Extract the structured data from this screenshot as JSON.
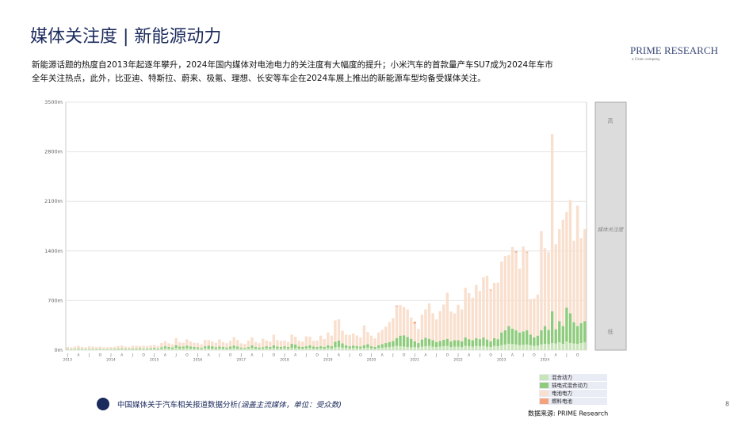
{
  "header": {
    "title": "媒体关注度 | 新能源动力",
    "subtitle": [
      "新能源话题的热度自2013年起逐年攀升，2024年国内媒体对电池电力的关注度有大幅度的提升；小米汽车的首款量产车SU7成为2024年车市",
      "全年关注热点，此外，比亚迪、特斯拉、蔚来、极氪、理想、长安等车企在2024车展上推出的新能源车型均备受媒体关注。"
    ],
    "logo": "PRIME RESEARCH",
    "logo_sub": "a Cision company"
  },
  "footer": {
    "note": "中国媒体关于汽车相关报道数据分析",
    "note_italic": "(涵盖主流媒体，单位：受众数)",
    "source": "数据来源: PRIME Research",
    "page": "8"
  },
  "side_scale": {
    "high": "高",
    "middle": "媒体关注度",
    "low": "低"
  },
  "chart_data": {
    "type": "stacked_bar",
    "ylim": [
      0,
      3500
    ],
    "yticks": [
      {
        "value": 0,
        "label": "0m"
      },
      {
        "value": 700,
        "label": "700m"
      },
      {
        "value": 1400,
        "label": "1400m"
      },
      {
        "value": 2100,
        "label": "2100m"
      },
      {
        "value": 2800,
        "label": "2800m"
      },
      {
        "value": 3500,
        "label": "3500m"
      }
    ],
    "grid": true,
    "year_labels": [
      "2013",
      "2014",
      "2015",
      "2016",
      "2017",
      "2018",
      "2019",
      "2020",
      "2021",
      "2022",
      "2023",
      "2024"
    ],
    "categories": [
      "J",
      null,
      null,
      "A",
      null,
      null,
      "J",
      null,
      null,
      "O",
      null,
      null,
      "J",
      null,
      null,
      "A",
      null,
      null,
      "J",
      null,
      null,
      "O",
      null,
      null,
      "J",
      null,
      null,
      "A",
      null,
      null,
      "J",
      null,
      null,
      "O",
      null,
      null,
      "J",
      null,
      null,
      "A",
      null,
      null,
      "J",
      null,
      null,
      "O",
      null,
      null,
      "J",
      null,
      null,
      "A",
      null,
      null,
      "J",
      null,
      null,
      "O",
      null,
      null,
      "J",
      null,
      null,
      "A",
      null,
      null,
      "J",
      null,
      null,
      "O",
      null,
      null,
      "J",
      null,
      null,
      "A",
      null,
      null,
      "J",
      null,
      null,
      "O",
      null,
      null,
      "J",
      null,
      null,
      "A",
      null,
      null,
      "J",
      null,
      null,
      "O",
      null,
      null,
      "J",
      null,
      null,
      "A",
      null,
      null,
      "J",
      null,
      null,
      "O",
      null,
      null,
      "J",
      null,
      null,
      "A",
      null,
      null,
      "J",
      null,
      null,
      "O",
      null,
      null,
      "J",
      null,
      null,
      "A",
      null,
      null,
      "J",
      null,
      null,
      "O",
      null,
      null,
      "J",
      null,
      null,
      "A",
      null,
      null,
      "J",
      null,
      null,
      "O",
      null,
      null
    ],
    "series": [
      {
        "name": "混合动力",
        "color": "#c9e4b8",
        "values": [
          15,
          12,
          14,
          18,
          15,
          12,
          14,
          16,
          13,
          15,
          14,
          12,
          14,
          12,
          15,
          16,
          13,
          12,
          14,
          15,
          16,
          14,
          13,
          15,
          18,
          15,
          20,
          25,
          22,
          18,
          30,
          20,
          25,
          28,
          22,
          20,
          20,
          18,
          25,
          22,
          20,
          18,
          22,
          20,
          18,
          20,
          25,
          22,
          22,
          20,
          25,
          30,
          20,
          18,
          22,
          25,
          20,
          28,
          22,
          20,
          25,
          20,
          30,
          28,
          22,
          20,
          25,
          30,
          22,
          20,
          25,
          22,
          30,
          25,
          40,
          45,
          35,
          30,
          25,
          30,
          28,
          25,
          30,
          35,
          25,
          20,
          30,
          35,
          40,
          45,
          50,
          60,
          55,
          50,
          45,
          40,
          45,
          40,
          50,
          55,
          60,
          50,
          45,
          50,
          55,
          60,
          45,
          50,
          50,
          45,
          60,
          55,
          50,
          60,
          55,
          60,
          50,
          45,
          60,
          55,
          70,
          80,
          90,
          85,
          80,
          70,
          75,
          80,
          70,
          60,
          65,
          80,
          90,
          85,
          100,
          95,
          110,
          90,
          120,
          100,
          95,
          90,
          100,
          110
        ]
      },
      {
        "name": "插电式混合动力",
        "color": "#8fcb7d",
        "values": [
          5,
          4,
          6,
          8,
          6,
          5,
          6,
          5,
          4,
          6,
          5,
          4,
          6,
          5,
          8,
          10,
          8,
          6,
          8,
          10,
          12,
          8,
          10,
          12,
          15,
          10,
          20,
          30,
          25,
          20,
          40,
          30,
          25,
          35,
          30,
          25,
          20,
          15,
          30,
          40,
          35,
          25,
          30,
          25,
          20,
          30,
          40,
          30,
          15,
          12,
          20,
          40,
          25,
          20,
          20,
          30,
          25,
          40,
          30,
          25,
          30,
          25,
          60,
          50,
          30,
          25,
          30,
          40,
          30,
          25,
          30,
          25,
          40,
          30,
          80,
          90,
          60,
          40,
          30,
          35,
          30,
          25,
          40,
          50,
          30,
          25,
          40,
          50,
          60,
          70,
          80,
          110,
          150,
          160,
          140,
          120,
          80,
          60,
          100,
          120,
          100,
          90,
          70,
          80,
          90,
          100,
          80,
          90,
          90,
          80,
          120,
          100,
          90,
          110,
          100,
          120,
          100,
          80,
          110,
          100,
          180,
          200,
          250,
          220,
          200,
          180,
          190,
          200,
          150,
          120,
          140,
          200,
          250,
          200,
          450,
          200,
          300,
          250,
          480,
          420,
          300,
          250,
          280,
          300
        ]
      },
      {
        "name": "电池电力",
        "color": "#f9dfcd",
        "values": [
          25,
          22,
          30,
          35,
          25,
          22,
          35,
          30,
          28,
          30,
          22,
          24,
          25,
          30,
          35,
          40,
          30,
          25,
          40,
          35,
          30,
          40,
          35,
          40,
          40,
          35,
          60,
          70,
          50,
          45,
          100,
          60,
          55,
          90,
          70,
          60,
          60,
          50,
          90,
          80,
          70,
          60,
          100,
          70,
          60,
          80,
          120,
          90,
          60,
          55,
          90,
          110,
          70,
          60,
          120,
          80,
          75,
          150,
          90,
          85,
          80,
          70,
          130,
          110,
          80,
          75,
          140,
          120,
          80,
          90,
          150,
          110,
          180,
          150,
          300,
          300,
          180,
          150,
          160,
          170,
          150,
          130,
          280,
          170,
          150,
          120,
          180,
          200,
          230,
          280,
          320,
          450,
          430,
          400,
          390,
          300,
          250,
          200,
          350,
          400,
          500,
          380,
          320,
          420,
          500,
          650,
          420,
          380,
          500,
          450,
          700,
          650,
          600,
          750,
          680,
          850,
          900,
          720,
          780,
          800,
          1000,
          1050,
          1000,
          1150,
          1100,
          900,
          1200,
          1100,
          500,
          550,
          580,
          1400,
          1100,
          1100,
          2500,
          1200,
          1300,
          1500,
          1350,
          1600,
          1150,
          1700,
          1200,
          1300
        ]
      },
      {
        "name": "燃料电池",
        "color": "#f4a27c",
        "values": [
          0,
          0,
          0,
          0,
          0,
          0,
          0,
          0,
          0,
          0,
          0,
          0,
          0,
          0,
          0,
          0,
          0,
          0,
          0,
          0,
          0,
          0,
          0,
          0,
          0,
          0,
          0,
          0,
          0,
          0,
          0,
          0,
          0,
          0,
          0,
          0,
          0,
          0,
          0,
          0,
          0,
          0,
          0,
          0,
          0,
          0,
          0,
          0,
          0,
          0,
          0,
          0,
          0,
          0,
          0,
          0,
          0,
          0,
          0,
          0,
          0,
          0,
          0,
          0,
          0,
          0,
          0,
          0,
          0,
          0,
          0,
          0,
          0,
          0,
          0,
          0,
          0,
          0,
          0,
          0,
          0,
          0,
          0,
          0,
          0,
          0,
          0,
          0,
          0,
          0,
          0,
          10,
          0,
          0,
          0,
          0,
          25,
          0,
          0,
          0,
          0,
          0,
          0,
          0,
          0,
          0,
          0,
          0,
          0,
          0,
          0,
          0,
          0,
          0,
          0,
          0,
          0,
          10,
          0,
          0,
          0,
          0,
          0,
          0,
          15,
          0,
          0,
          10,
          0,
          0,
          0,
          0,
          0,
          0,
          0,
          0,
          0,
          0,
          0,
          0,
          0,
          0,
          0,
          0
        ]
      }
    ]
  }
}
